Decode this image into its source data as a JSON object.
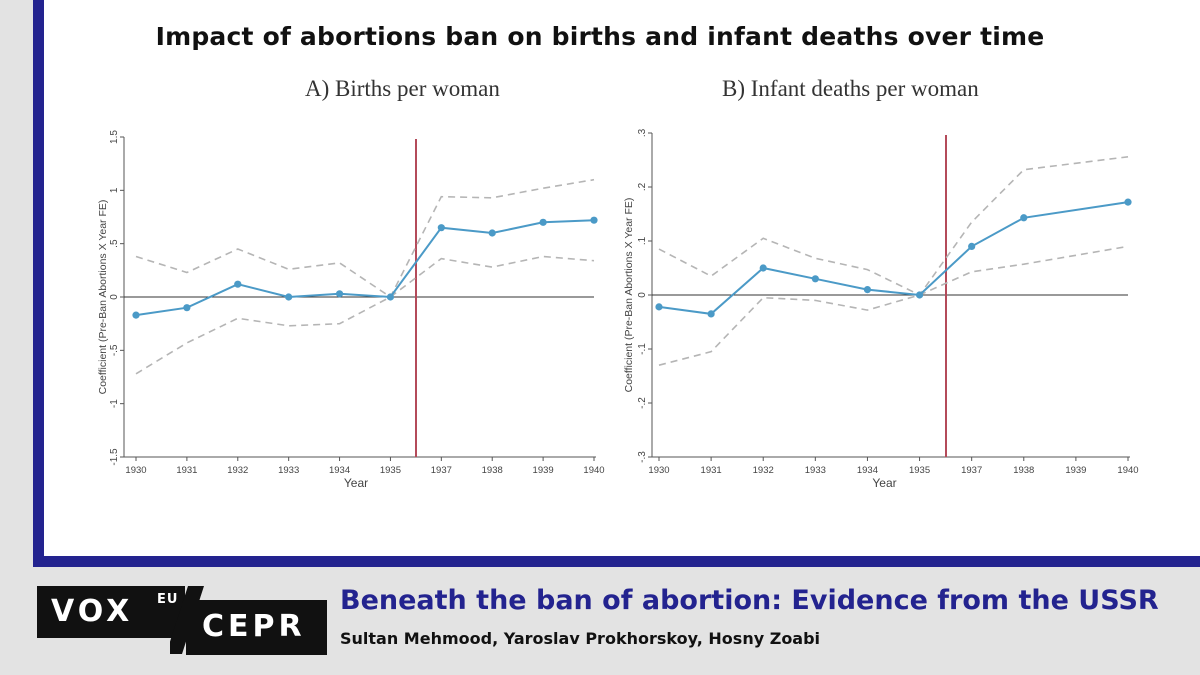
{
  "title": "Impact of abortions ban on births and infant deaths over time",
  "article": {
    "title": "Beneath the ban of abortion: Evidence from the USSR",
    "authors": "Sultan Mehmood, Yaroslav Prokhorskoy, Hosny Zoabi"
  },
  "branding": {
    "vox": "VOX",
    "eu": "EU",
    "cepr": "CEPR"
  },
  "colors": {
    "frame": "#23238f",
    "series": "#4b9ac7",
    "ci": "#b5b5b5",
    "ban_line": "#b44b5a"
  },
  "chart_data": [
    {
      "type": "line",
      "title": "A) Births per woman",
      "xlabel": "Year",
      "ylabel": "Coefficient (Pre-Ban Abortions X Year FE)",
      "categories": [
        "1930",
        "1931",
        "1932",
        "1933",
        "1934",
        "1935",
        "1937",
        "1938",
        "1939",
        "1940"
      ],
      "series": [
        {
          "role": "estimate",
          "values": [
            -0.17,
            -0.1,
            0.12,
            0.0,
            0.03,
            0.0,
            0.65,
            0.6,
            0.7,
            0.72
          ]
        },
        {
          "role": "ci_upper",
          "values": [
            0.38,
            0.23,
            0.45,
            0.26,
            0.32,
            0.0,
            0.94,
            0.93,
            1.02,
            1.1
          ]
        },
        {
          "role": "ci_lower",
          "values": [
            -0.72,
            -0.43,
            -0.2,
            -0.27,
            -0.25,
            0.0,
            0.36,
            0.28,
            0.38,
            0.34
          ]
        }
      ],
      "yticks": [
        -1.5,
        -1,
        -0.5,
        0,
        0.5,
        1,
        1.5
      ],
      "ytick_labels": [
        "-1.5",
        "-1",
        "-.5",
        "0",
        ".5",
        "1",
        "1.5"
      ],
      "ylim": [
        -1.5,
        1.5
      ],
      "reference_line_after": "1935",
      "grid": false
    },
    {
      "type": "line",
      "title": "B) Infant deaths per woman",
      "xlabel": "Year",
      "ylabel": "Coefficient (Pre-Ban Abortions X Year FE)",
      "categories": [
        "1930",
        "1931",
        "1932",
        "1933",
        "1934",
        "1935",
        "1937",
        "1938",
        "1939",
        "1940"
      ],
      "series": [
        {
          "role": "estimate",
          "values": [
            -0.022,
            -0.035,
            0.05,
            0.03,
            0.01,
            0.0,
            0.09,
            0.143,
            null,
            0.172
          ]
        },
        {
          "role": "ci_upper",
          "values": [
            0.085,
            0.035,
            0.105,
            0.068,
            0.047,
            0.0,
            0.135,
            0.232,
            null,
            0.256
          ]
        },
        {
          "role": "ci_lower",
          "values": [
            -0.13,
            -0.105,
            -0.005,
            -0.01,
            -0.028,
            0.0,
            0.043,
            0.057,
            null,
            0.09
          ]
        }
      ],
      "yticks": [
        -0.3,
        -0.2,
        -0.1,
        0,
        0.1,
        0.2,
        0.3
      ],
      "ytick_labels": [
        "-.3",
        "-.2",
        "-.1",
        "0",
        ".1",
        ".2",
        ".3"
      ],
      "ylim": [
        -0.3,
        0.3
      ],
      "reference_line_after": "1935",
      "grid": false
    }
  ]
}
